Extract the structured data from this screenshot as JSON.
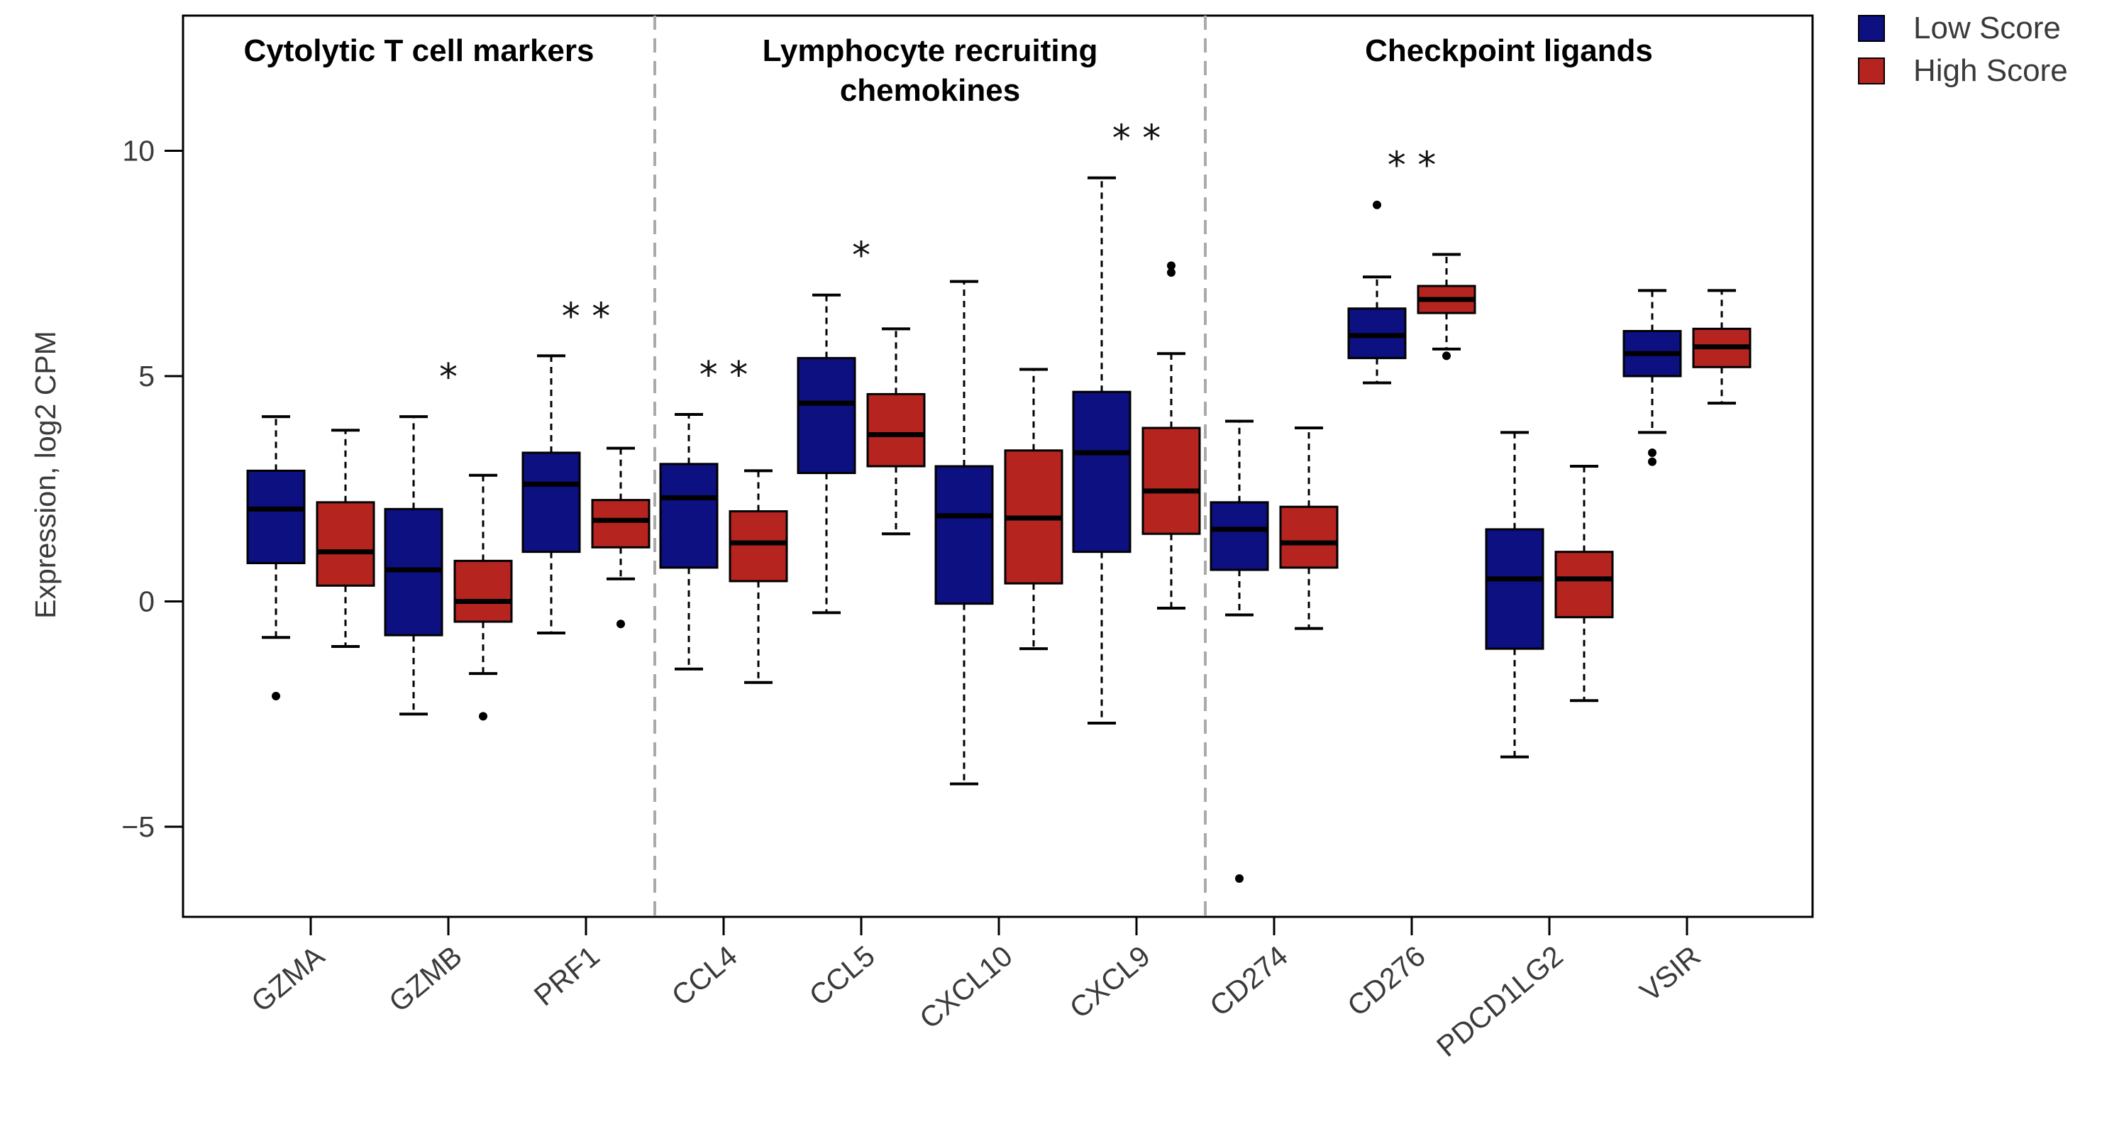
{
  "chart_data": {
    "type": "box",
    "ylabel": "Expression, log2 CPM",
    "xlabel": "",
    "ylim": [
      -7,
      13
    ],
    "yticks": [
      -5,
      0,
      5,
      10
    ],
    "grid": false,
    "legend_position": "top-right (outside plot)",
    "colors": {
      "low": "#0c1080",
      "high": "#b5241f",
      "separator": "#aaaaaa"
    },
    "legend": [
      {
        "key": "low",
        "label": "Low Score"
      },
      {
        "key": "high",
        "label": "High Score"
      }
    ],
    "sections": [
      {
        "title_lines": [
          "Cytolytic T cell markers"
        ],
        "genes": [
          "GZMA",
          "GZMB",
          "PRF1"
        ]
      },
      {
        "title_lines": [
          "Lymphocyte recruiting",
          "chemokines"
        ],
        "genes": [
          "CCL4",
          "CCL5",
          "CXCL10",
          "CXCL9"
        ]
      },
      {
        "title_lines": [
          "Checkpoint ligands"
        ],
        "genes": [
          "CD274",
          "CD276",
          "PDCD1LG2",
          "VSIR"
        ]
      }
    ],
    "categories": [
      "GZMA",
      "GZMB",
      "PRF1",
      "CCL4",
      "CCL5",
      "CXCL10",
      "CXCL9",
      "CD274",
      "CD276",
      "PDCD1LG2",
      "VSIR"
    ],
    "significance": [
      "",
      "*",
      "**",
      "**",
      "*",
      "",
      "**",
      "",
      "**",
      "",
      ""
    ],
    "series": [
      {
        "key": "low",
        "boxes": [
          {
            "whisker_low": -0.8,
            "q1": 0.85,
            "median": 2.05,
            "q3": 2.9,
            "whisker_high": 4.1,
            "outliers": [
              -2.1
            ]
          },
          {
            "whisker_low": -2.5,
            "q1": -0.75,
            "median": 0.7,
            "q3": 2.05,
            "whisker_high": 4.1,
            "outliers": []
          },
          {
            "whisker_low": -0.7,
            "q1": 1.1,
            "median": 2.6,
            "q3": 3.3,
            "whisker_high": 5.45,
            "outliers": []
          },
          {
            "whisker_low": -1.5,
            "q1": 0.75,
            "median": 2.3,
            "q3": 3.05,
            "whisker_high": 4.15,
            "outliers": []
          },
          {
            "whisker_low": -0.25,
            "q1": 2.85,
            "median": 4.4,
            "q3": 5.4,
            "whisker_high": 6.8,
            "outliers": []
          },
          {
            "whisker_low": -4.05,
            "q1": -0.05,
            "median": 1.9,
            "q3": 3.0,
            "whisker_high": 7.1,
            "outliers": []
          },
          {
            "whisker_low": -2.7,
            "q1": 1.1,
            "median": 3.3,
            "q3": 4.65,
            "whisker_high": 9.4,
            "outliers": []
          },
          {
            "whisker_low": -0.3,
            "q1": 0.7,
            "median": 1.6,
            "q3": 2.2,
            "whisker_high": 4.0,
            "outliers": [
              -6.15
            ]
          },
          {
            "whisker_low": 4.85,
            "q1": 5.4,
            "median": 5.9,
            "q3": 6.5,
            "whisker_high": 7.2,
            "outliers": [
              8.8
            ]
          },
          {
            "whisker_low": -3.45,
            "q1": -1.05,
            "median": 0.5,
            "q3": 1.6,
            "whisker_high": 3.75,
            "outliers": []
          },
          {
            "whisker_low": 3.75,
            "q1": 5.0,
            "median": 5.5,
            "q3": 6.0,
            "whisker_high": 6.9,
            "outliers": [
              3.3,
              3.1
            ]
          }
        ]
      },
      {
        "key": "high",
        "boxes": [
          {
            "whisker_low": -1.0,
            "q1": 0.35,
            "median": 1.1,
            "q3": 2.2,
            "whisker_high": 3.8,
            "outliers": []
          },
          {
            "whisker_low": -1.6,
            "q1": -0.45,
            "median": 0.0,
            "q3": 0.9,
            "whisker_high": 2.8,
            "outliers": [
              -2.55
            ]
          },
          {
            "whisker_low": 0.5,
            "q1": 1.2,
            "median": 1.8,
            "q3": 2.25,
            "whisker_high": 3.4,
            "outliers": [
              -0.5
            ]
          },
          {
            "whisker_low": -1.8,
            "q1": 0.45,
            "median": 1.3,
            "q3": 2.0,
            "whisker_high": 2.9,
            "outliers": []
          },
          {
            "whisker_low": 1.5,
            "q1": 3.0,
            "median": 3.7,
            "q3": 4.6,
            "whisker_high": 6.05,
            "outliers": []
          },
          {
            "whisker_low": -1.05,
            "q1": 0.4,
            "median": 1.85,
            "q3": 3.35,
            "whisker_high": 5.15,
            "outliers": []
          },
          {
            "whisker_low": -0.15,
            "q1": 1.5,
            "median": 2.45,
            "q3": 3.85,
            "whisker_high": 5.5,
            "outliers": [
              7.45,
              7.3
            ]
          },
          {
            "whisker_low": -0.6,
            "q1": 0.75,
            "median": 1.3,
            "q3": 2.1,
            "whisker_high": 3.85,
            "outliers": []
          },
          {
            "whisker_low": 5.6,
            "q1": 6.4,
            "median": 6.7,
            "q3": 7.0,
            "whisker_high": 7.7,
            "outliers": [
              5.45
            ]
          },
          {
            "whisker_low": -2.2,
            "q1": -0.35,
            "median": 0.5,
            "q3": 1.1,
            "whisker_high": 3.0,
            "outliers": []
          },
          {
            "whisker_low": 4.4,
            "q1": 5.2,
            "median": 5.65,
            "q3": 6.05,
            "whisker_high": 6.9,
            "outliers": []
          }
        ]
      }
    ]
  }
}
